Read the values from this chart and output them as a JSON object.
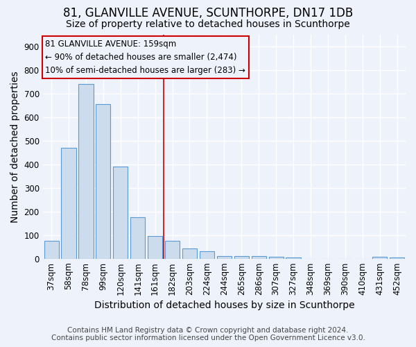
{
  "title": "81, GLANVILLE AVENUE, SCUNTHORPE, DN17 1DB",
  "subtitle": "Size of property relative to detached houses in Scunthorpe",
  "xlabel": "Distribution of detached houses by size in Scunthorpe",
  "ylabel": "Number of detached properties",
  "footnote1": "Contains HM Land Registry data © Crown copyright and database right 2024.",
  "footnote2": "Contains public sector information licensed under the Open Government Licence v3.0.",
  "categories": [
    "37sqm",
    "58sqm",
    "78sqm",
    "99sqm",
    "120sqm",
    "141sqm",
    "161sqm",
    "182sqm",
    "203sqm",
    "224sqm",
    "244sqm",
    "265sqm",
    "286sqm",
    "307sqm",
    "327sqm",
    "348sqm",
    "369sqm",
    "390sqm",
    "410sqm",
    "431sqm",
    "452sqm"
  ],
  "values": [
    75,
    470,
    740,
    655,
    390,
    175,
    97,
    75,
    43,
    30,
    12,
    11,
    10,
    8,
    5,
    0,
    0,
    0,
    0,
    7,
    5
  ],
  "bar_color": "#ccdcec",
  "bar_edge_color": "#5b9bd5",
  "annotation_line1": "81 GLANVILLE AVENUE: 159sqm",
  "annotation_line2": "← 90% of detached houses are smaller (2,474)",
  "annotation_line3": "10% of semi-detached houses are larger (283) →",
  "red_line_x": 6.5,
  "ylim": [
    0,
    950
  ],
  "yticks": [
    0,
    100,
    200,
    300,
    400,
    500,
    600,
    700,
    800,
    900
  ],
  "bg_color": "#eef2fb",
  "grid_color": "#ffffff",
  "title_fontsize": 12,
  "subtitle_fontsize": 10,
  "axis_label_fontsize": 10,
  "tick_fontsize": 8.5,
  "footnote_fontsize": 7.5
}
